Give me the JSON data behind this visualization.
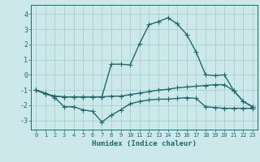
{
  "xlabel": "Humidex (Indice chaleur)",
  "background_color": "#cce8ea",
  "grid_color": "#aacfd2",
  "line_color": "#1e6b6b",
  "xlim": [
    -0.5,
    23.5
  ],
  "ylim": [
    -3.6,
    4.6
  ],
  "xticks": [
    0,
    1,
    2,
    3,
    4,
    5,
    6,
    7,
    8,
    9,
    10,
    11,
    12,
    13,
    14,
    15,
    16,
    17,
    18,
    19,
    20,
    21,
    22,
    23
  ],
  "yticks": [
    -3,
    -2,
    -1,
    0,
    1,
    2,
    3,
    4
  ],
  "line1_x": [
    0,
    1,
    2,
    3,
    4,
    5,
    6,
    7,
    8,
    9,
    10,
    11,
    12,
    13,
    14,
    15,
    16,
    17,
    18,
    19,
    20,
    21,
    22,
    23
  ],
  "line1_y": [
    -1.0,
    -1.2,
    -1.5,
    -2.1,
    -2.1,
    -2.3,
    -2.4,
    -3.1,
    -2.65,
    -2.3,
    -1.9,
    -1.75,
    -1.65,
    -1.6,
    -1.6,
    -1.55,
    -1.5,
    -1.55,
    -2.1,
    -2.15,
    -2.2,
    -2.2,
    -2.2,
    -2.2
  ],
  "line2_x": [
    0,
    1,
    2,
    3,
    4,
    5,
    6,
    7,
    8,
    9,
    10,
    11,
    12,
    13,
    14,
    15,
    16,
    17,
    18,
    19,
    20,
    21,
    22,
    23
  ],
  "line2_y": [
    -1.0,
    -1.25,
    -1.4,
    -1.45,
    -1.45,
    -1.45,
    -1.45,
    -1.45,
    -1.4,
    -1.4,
    -1.3,
    -1.2,
    -1.1,
    -1.0,
    -0.95,
    -0.85,
    -0.8,
    -0.75,
    -0.7,
    -0.65,
    -0.65,
    -1.05,
    -1.75,
    -2.1
  ],
  "line3_x": [
    0,
    1,
    2,
    3,
    4,
    5,
    6,
    7,
    8,
    9,
    10,
    11,
    12,
    13,
    14,
    15,
    16,
    17,
    18,
    19,
    20,
    21,
    22,
    23
  ],
  "line3_y": [
    -1.0,
    -1.25,
    -1.4,
    -1.45,
    -1.45,
    -1.45,
    -1.45,
    -1.45,
    0.7,
    0.7,
    0.65,
    2.05,
    3.3,
    3.5,
    3.75,
    3.35,
    2.65,
    1.5,
    0.0,
    -0.05,
    0.0,
    -1.05,
    -1.75,
    -2.1
  ],
  "marker": "+",
  "markersize": 4,
  "linewidth": 1.0
}
